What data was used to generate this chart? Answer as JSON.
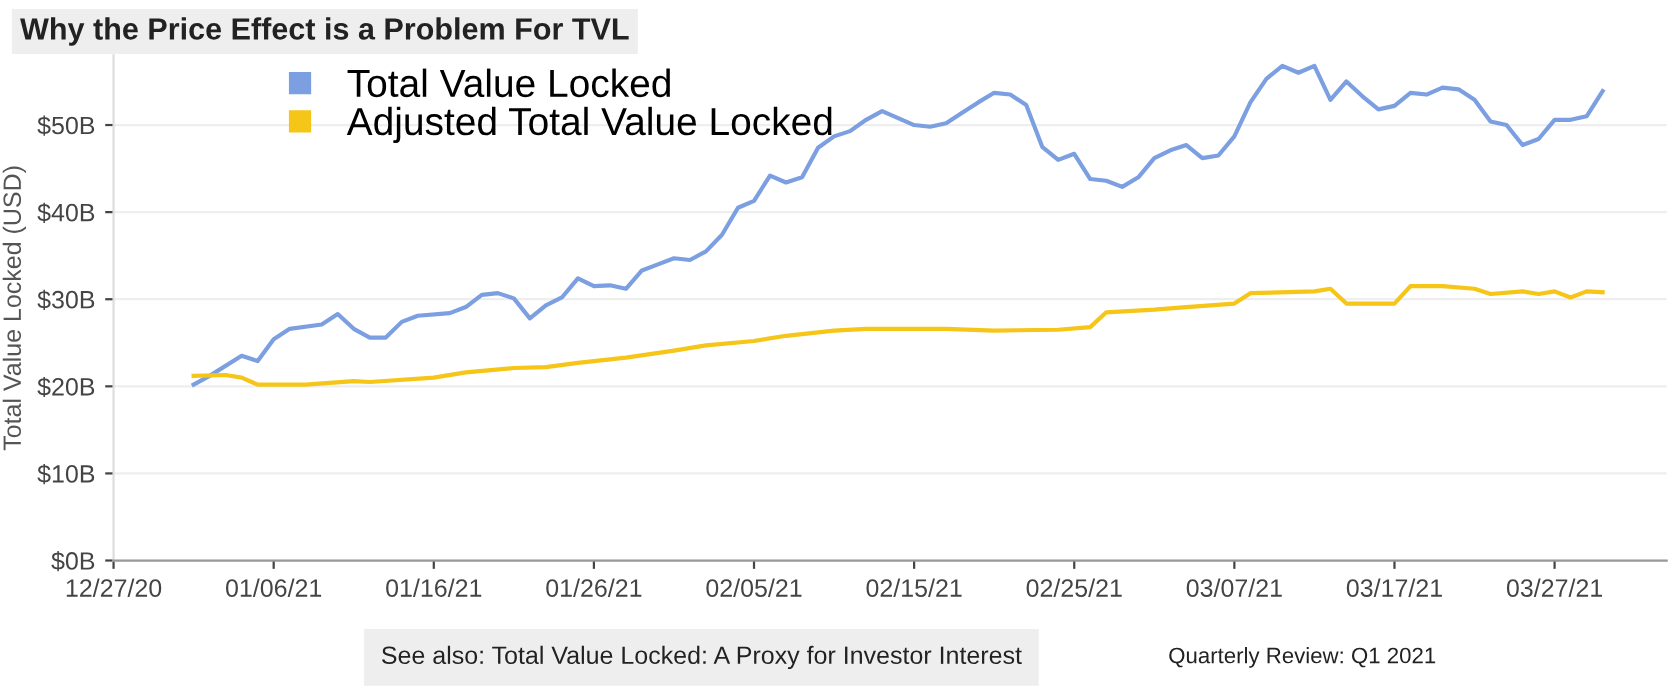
{
  "chart_data": {
    "type": "line",
    "title": "Why the Price Effect is a Problem For TVL",
    "ylabel": "Total Value Locked (USD)",
    "annotations": [
      "See also: Total Value Locked: A Proxy for Investor Interest",
      "Quarterly Review: Q1 2021"
    ],
    "xlim": [
      "2020-12-27",
      "2021-04-03"
    ],
    "xticks": [
      {
        "value": "2020-12-27",
        "label": "12/27/20"
      },
      {
        "value": "2021-01-06",
        "label": "01/06/21"
      },
      {
        "value": "2021-01-16",
        "label": "01/16/21"
      },
      {
        "value": "2021-01-26",
        "label": "01/26/21"
      },
      {
        "value": "2021-02-05",
        "label": "02/05/21"
      },
      {
        "value": "2021-02-15",
        "label": "02/15/21"
      },
      {
        "value": "2021-02-25",
        "label": "02/25/21"
      },
      {
        "value": "2021-03-07",
        "label": "03/07/21"
      },
      {
        "value": "2021-03-17",
        "label": "03/17/21"
      },
      {
        "value": "2021-03-27",
        "label": "03/27/21"
      }
    ],
    "ylim": [
      0,
      58
    ],
    "yticks": [
      {
        "value": 0,
        "label": "$0B"
      },
      {
        "value": 10,
        "label": "$10B"
      },
      {
        "value": 20,
        "label": "$20B"
      },
      {
        "value": 30,
        "label": "$30B"
      },
      {
        "value": 40,
        "label": "$40B"
      },
      {
        "value": 50,
        "label": "$50B"
      }
    ],
    "grid": "y",
    "legend": "top left",
    "marker": "none",
    "line_style": "solid",
    "series": [
      {
        "name": "Total Value Locked",
        "color": "#7b9fe0",
        "x": [
          "2021-01-01",
          "2021-01-02",
          "2021-01-04",
          "2021-01-05",
          "2021-01-06",
          "2021-01-07",
          "2021-01-09",
          "2021-01-10",
          "2021-01-11",
          "2021-01-12",
          "2021-01-13",
          "2021-01-14",
          "2021-01-15",
          "2021-01-17",
          "2021-01-18",
          "2021-01-19",
          "2021-01-20",
          "2021-01-21",
          "2021-01-22",
          "2021-01-23",
          "2021-01-24",
          "2021-01-25",
          "2021-01-26",
          "2021-01-27",
          "2021-01-28",
          "2021-01-29",
          "2021-01-30",
          "2021-01-31",
          "2021-02-01",
          "2021-02-02",
          "2021-02-03",
          "2021-02-04",
          "2021-02-05",
          "2021-02-06",
          "2021-02-07",
          "2021-02-08",
          "2021-02-09",
          "2021-02-10",
          "2021-02-11",
          "2021-02-12",
          "2021-02-13",
          "2021-02-14",
          "2021-02-15",
          "2021-02-16",
          "2021-02-17",
          "2021-02-18",
          "2021-02-19",
          "2021-02-20",
          "2021-02-21",
          "2021-02-22",
          "2021-02-23",
          "2021-02-24",
          "2021-02-25",
          "2021-02-26",
          "2021-02-27",
          "2021-02-28",
          "2021-03-01",
          "2021-03-02",
          "2021-03-03",
          "2021-03-04",
          "2021-03-05",
          "2021-03-06",
          "2021-03-07",
          "2021-03-08",
          "2021-03-09",
          "2021-03-10",
          "2021-03-11",
          "2021-03-12",
          "2021-03-13",
          "2021-03-14",
          "2021-03-15",
          "2021-03-16",
          "2021-03-17",
          "2021-03-18",
          "2021-03-19",
          "2021-03-20",
          "2021-03-21",
          "2021-03-22",
          "2021-03-23",
          "2021-03-24",
          "2021-03-25",
          "2021-03-26",
          "2021-03-27",
          "2021-03-28",
          "2021-03-29",
          "2021-03-30"
        ],
        "values": [
          20.2,
          21.2,
          23.5,
          22.9,
          25.4,
          26.6,
          27.1,
          28.3,
          26.6,
          25.6,
          25.6,
          27.4,
          28.1,
          28.4,
          29.1,
          30.5,
          30.7,
          30.1,
          27.8,
          29.3,
          30.2,
          32.4,
          31.5,
          31.6,
          31.2,
          33.3,
          34.0,
          34.7,
          34.5,
          35.5,
          37.4,
          40.5,
          41.3,
          44.2,
          43.4,
          44.0,
          47.4,
          48.7,
          49.3,
          50.6,
          51.6,
          50.8,
          50.0,
          49.8,
          50.2,
          51.4,
          52.6,
          53.7,
          53.5,
          52.3,
          47.5,
          46.0,
          46.7,
          43.8,
          43.6,
          42.9,
          44.0,
          46.2,
          47.1,
          47.7,
          46.2,
          46.5,
          48.7,
          52.6,
          55.3,
          56.8,
          56.0,
          56.8,
          52.9,
          55.0,
          53.3,
          51.8,
          52.2,
          53.7,
          53.5,
          54.3,
          54.1,
          52.9,
          50.4,
          50.0,
          47.7,
          48.4,
          50.6,
          50.6,
          51.0,
          53.9
        ]
      },
      {
        "name": "Adjusted Total Value Locked",
        "color": "#f5c518",
        "x": [
          "2021-01-01",
          "2021-01-03",
          "2021-01-04",
          "2021-01-05",
          "2021-01-06",
          "2021-01-08",
          "2021-01-11",
          "2021-01-12",
          "2021-01-16",
          "2021-01-18",
          "2021-01-21",
          "2021-01-23",
          "2021-01-25",
          "2021-01-27",
          "2021-01-28",
          "2021-01-31",
          "2021-02-02",
          "2021-02-05",
          "2021-02-07",
          "2021-02-10",
          "2021-02-12",
          "2021-02-17",
          "2021-02-20",
          "2021-02-24",
          "2021-02-26",
          "2021-02-27",
          "2021-03-02",
          "2021-03-04",
          "2021-03-07",
          "2021-03-08",
          "2021-03-12",
          "2021-03-13",
          "2021-03-14",
          "2021-03-17",
          "2021-03-18",
          "2021-03-20",
          "2021-03-22",
          "2021-03-23",
          "2021-03-25",
          "2021-03-26",
          "2021-03-27",
          "2021-03-28",
          "2021-03-29",
          "2021-03-30"
        ],
        "values": [
          21.2,
          21.3,
          21.0,
          20.2,
          20.2,
          20.2,
          20.6,
          20.5,
          21.0,
          21.6,
          22.1,
          22.2,
          22.7,
          23.1,
          23.3,
          24.1,
          24.7,
          25.2,
          25.8,
          26.4,
          26.6,
          26.6,
          26.4,
          26.5,
          26.8,
          28.5,
          28.8,
          29.1,
          29.5,
          30.7,
          30.9,
          31.2,
          29.5,
          29.5,
          31.5,
          31.5,
          31.2,
          30.6,
          30.9,
          30.6,
          30.9,
          30.2,
          30.9,
          30.8
        ]
      }
    ]
  }
}
